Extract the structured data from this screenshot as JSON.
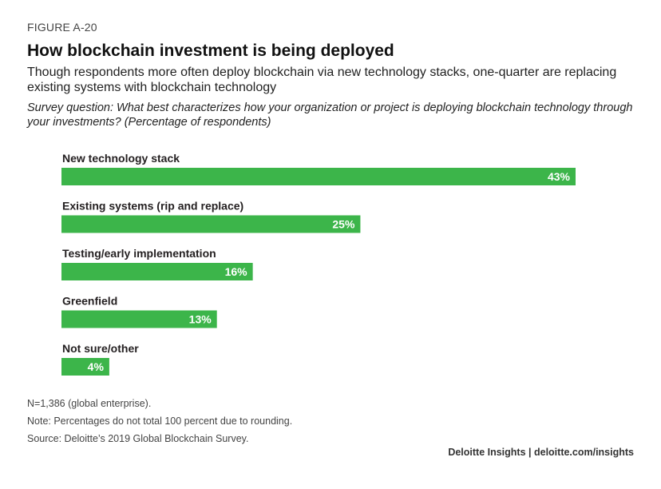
{
  "header": {
    "figure_label": "FIGURE A-20",
    "title": "How blockchain investment is being deployed",
    "subtitle": "Though respondents more often deploy blockchain via new technology stacks, one-quarter are replacing existing systems with blockchain technology",
    "question": "Survey question: What best characterizes how your organization or project is deploying blockchain technology through your investments? (Percentage of respondents)"
  },
  "chart_data": {
    "type": "bar",
    "orientation": "horizontal",
    "categories": [
      "New technology stack",
      "Existing systems (rip and replace)",
      "Testing/early implementation",
      "Greenfield",
      "Not sure/other"
    ],
    "values": [
      43,
      25,
      16,
      13,
      4
    ],
    "value_labels": [
      "43%",
      "25%",
      "16%",
      "13%",
      "4%"
    ],
    "bar_color": "#3cb54a",
    "label_color": "#ffffff",
    "xlim": [
      0,
      43
    ],
    "grid": false,
    "legend": "none"
  },
  "notes": {
    "n": "N=1,386 (global enterprise).",
    "note": "Note: Percentages do not total 100 percent due to rounding.",
    "source": "Source: Deloitte’s 2019 Global Blockchain Survey."
  },
  "footer": {
    "credit": "Deloitte Insights | deloitte.com/insights"
  }
}
